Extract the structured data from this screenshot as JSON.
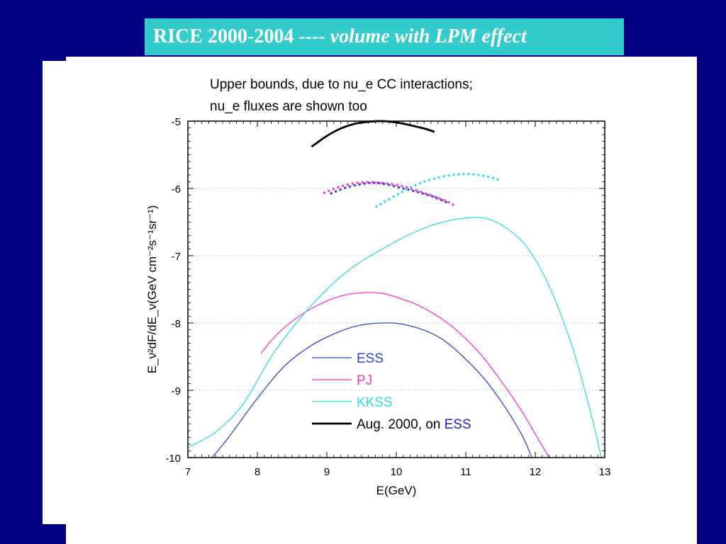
{
  "slide": {
    "title_bold": "RICE 2000-2004",
    "title_dashes": " ---- ",
    "title_italic": "volume with LPM effect",
    "background_color": "#000080",
    "title_bar_color": "#33cccc"
  },
  "chart_data": {
    "type": "line",
    "title_lines": [
      "Upper bounds, due to nu_e CC interactions;",
      "nu_e fluxes are shown too"
    ],
    "xlabel": "E(GeV)",
    "ylabel": "E_ν²dF/dE_ν(GeV cm⁻²s⁻¹sr⁻¹)",
    "xlim": [
      7,
      13
    ],
    "ylim": [
      -10,
      -5
    ],
    "xticks": [
      "7",
      "8",
      "9",
      "10",
      "11",
      "12",
      "13"
    ],
    "yticks": [
      "-10",
      "-9",
      "-8",
      "-7",
      "-6",
      "-5"
    ],
    "grid": true,
    "legend_position": "lower-center",
    "legend": [
      {
        "label": "ESS",
        "color": "#3344cc"
      },
      {
        "label": "PJ",
        "color": "#ff33cc"
      },
      {
        "label": "KKSS",
        "color": "#33dddd"
      },
      {
        "label": "Aug. 2000, on ",
        "label_suffix": "ESS",
        "suffix_color": "#2222cc",
        "color": "#000000"
      }
    ],
    "series": [
      {
        "name": "ESS",
        "color": "#3344cc",
        "style": "solid",
        "x": [
          7.35,
          7.6,
          8.0,
          8.4,
          8.8,
          9.2,
          9.5,
          9.8,
          10.1,
          10.5,
          10.8,
          11.2,
          11.5,
          11.8,
          11.95
        ],
        "y": [
          -10.0,
          -9.68,
          -9.12,
          -8.63,
          -8.32,
          -8.12,
          -8.03,
          -8.0,
          -8.02,
          -8.15,
          -8.35,
          -8.75,
          -9.15,
          -9.65,
          -10.0
        ]
      },
      {
        "name": "PJ",
        "color": "#ff33cc",
        "style": "solid",
        "x": [
          8.05,
          8.3,
          8.6,
          8.9,
          9.2,
          9.5,
          9.8,
          10.1,
          10.4,
          10.8,
          11.2,
          11.5,
          11.8,
          12.0,
          12.2
        ],
        "y": [
          -8.45,
          -8.15,
          -7.9,
          -7.72,
          -7.6,
          -7.55,
          -7.56,
          -7.65,
          -7.78,
          -8.05,
          -8.45,
          -8.85,
          -9.3,
          -9.65,
          -10.0
        ]
      },
      {
        "name": "KKSS",
        "color": "#33dddd",
        "style": "solid",
        "x": [
          7.0,
          7.4,
          7.8,
          8.2,
          8.6,
          9.0,
          9.4,
          9.8,
          10.2,
          10.6,
          11.0,
          11.3,
          11.6,
          11.9,
          12.2,
          12.5,
          12.7,
          12.85,
          12.95
        ],
        "y": [
          -9.85,
          -9.62,
          -9.2,
          -8.5,
          -7.95,
          -7.5,
          -7.15,
          -6.9,
          -6.68,
          -6.52,
          -6.44,
          -6.45,
          -6.6,
          -6.9,
          -7.45,
          -8.25,
          -8.95,
          -9.55,
          -10.0
        ]
      },
      {
        "name": "Aug. 2000, on ESS",
        "color": "#000000",
        "style": "solid",
        "x": [
          8.78,
          9.0,
          9.2,
          9.4,
          9.6,
          9.8,
          10.0,
          10.2,
          10.4,
          10.55
        ],
        "y": [
          -5.38,
          -5.22,
          -5.11,
          -5.04,
          -5.01,
          -5.0,
          -5.02,
          -5.06,
          -5.11,
          -5.16
        ]
      },
      {
        "name": "ESS bound",
        "color": "#3344cc",
        "style": "dotted",
        "x": [
          9.05,
          9.3,
          9.6,
          9.8,
          10.1,
          10.4,
          10.6,
          10.75
        ],
        "y": [
          -6.08,
          -5.98,
          -5.92,
          -5.93,
          -6.0,
          -6.08,
          -6.15,
          -6.22
        ]
      },
      {
        "name": "PJ bound",
        "color": "#ff33cc",
        "style": "dotted",
        "x": [
          8.95,
          9.2,
          9.5,
          9.8,
          10.1,
          10.4,
          10.7,
          10.85
        ],
        "y": [
          -6.07,
          -5.97,
          -5.91,
          -5.92,
          -5.97,
          -6.07,
          -6.18,
          -6.26
        ]
      },
      {
        "name": "KKSS bound",
        "color": "#33dddd",
        "style": "dotted",
        "x": [
          9.7,
          10.0,
          10.3,
          10.6,
          10.9,
          11.1,
          11.3,
          11.5
        ],
        "y": [
          -6.28,
          -6.1,
          -5.94,
          -5.84,
          -5.79,
          -5.79,
          -5.82,
          -5.88
        ]
      }
    ]
  }
}
